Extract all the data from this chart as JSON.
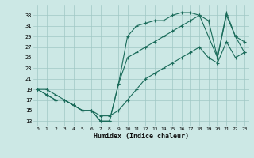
{
  "bg_color": "#cce8e5",
  "grid_color": "#a0c8c5",
  "line_color": "#1a6b5a",
  "xlabel": "Humidex (Indice chaleur)",
  "xlim": [
    -0.5,
    23.5
  ],
  "ylim": [
    12,
    35
  ],
  "xticks": [
    0,
    1,
    2,
    3,
    4,
    5,
    6,
    7,
    8,
    9,
    10,
    11,
    12,
    13,
    14,
    15,
    16,
    17,
    18,
    19,
    20,
    21,
    22,
    23
  ],
  "yticks": [
    13,
    15,
    17,
    19,
    21,
    23,
    25,
    27,
    29,
    31,
    33
  ],
  "line1_x": [
    0,
    1,
    2,
    3,
    4,
    5,
    6,
    7,
    8,
    9,
    10,
    11,
    12,
    13,
    14,
    15,
    16,
    17,
    18,
    19,
    20,
    21,
    22,
    23
  ],
  "line1_y": [
    19,
    18,
    17,
    17,
    16,
    15,
    15,
    13,
    13,
    20,
    29,
    31,
    31.5,
    32,
    32,
    33,
    33.5,
    33.5,
    33,
    32,
    25,
    33.5,
    29,
    28
  ],
  "line2_x": [
    0,
    1,
    2,
    3,
    4,
    5,
    6,
    7,
    8,
    9,
    10,
    11,
    12,
    13,
    14,
    15,
    16,
    17,
    18,
    20,
    21,
    22,
    23
  ],
  "line2_y": [
    19,
    18,
    17,
    17,
    16,
    15,
    15,
    13,
    13,
    20,
    25,
    26,
    27,
    28,
    29,
    30,
    31,
    32,
    33,
    25,
    33,
    29,
    26
  ],
  "line3_x": [
    0,
    1,
    2,
    3,
    4,
    5,
    6,
    7,
    8,
    9,
    10,
    11,
    12,
    13,
    14,
    15,
    16,
    17,
    18,
    19,
    20,
    21,
    22,
    23
  ],
  "line3_y": [
    19,
    19,
    18,
    17,
    16,
    15,
    15,
    14,
    14,
    15,
    17,
    19,
    21,
    22,
    23,
    24,
    25,
    26,
    27,
    25,
    24,
    28,
    25,
    26
  ]
}
